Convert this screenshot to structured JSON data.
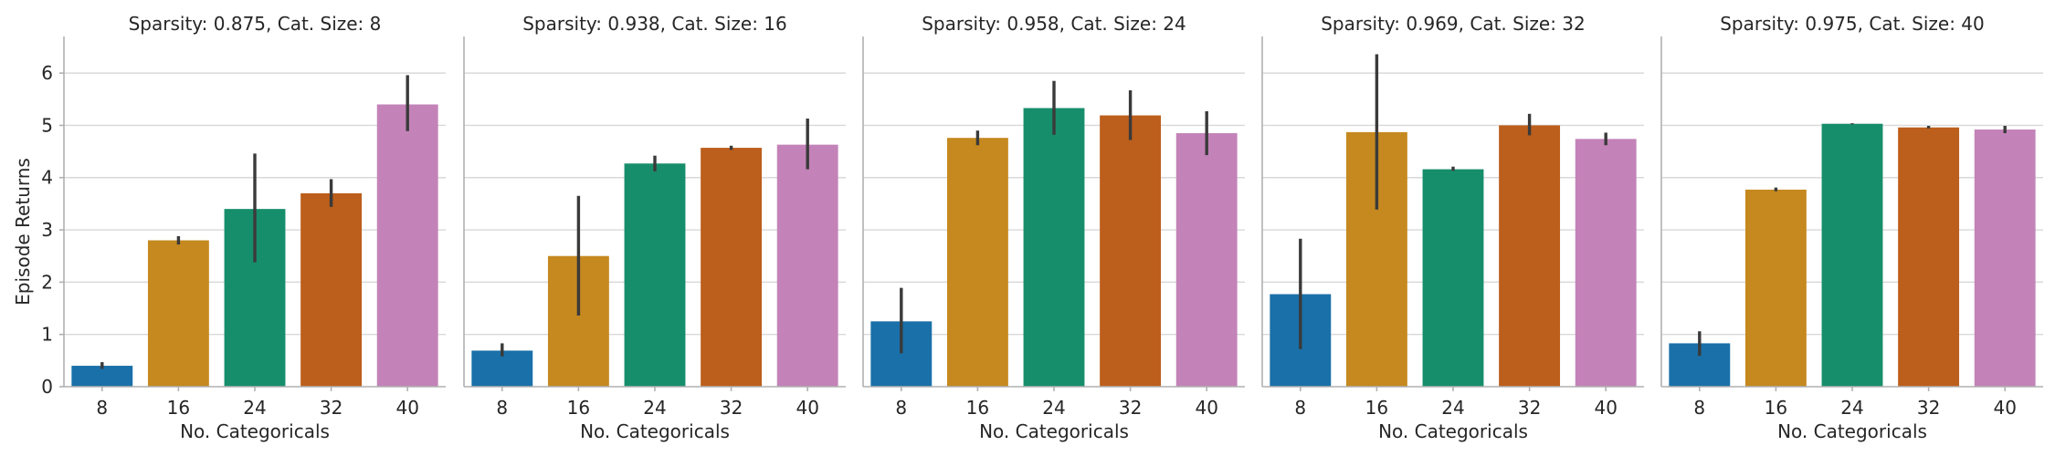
{
  "chart_data": {
    "type": "bar",
    "ylabel": "Episode Returns",
    "xlabel": "No. Categoricals",
    "categories": [
      "8",
      "16",
      "24",
      "32",
      "40"
    ],
    "colors": [
      "#1a70a8",
      "#c5891f",
      "#178e6b",
      "#bc5e1c",
      "#c383b8"
    ],
    "ylim": [
      0,
      6.7
    ],
    "yticks": [
      "0",
      "1",
      "2",
      "3",
      "4",
      "5",
      "6"
    ],
    "grid": true,
    "panels": [
      {
        "title": "Sparsity: 0.875, Cat. Size: 8",
        "values": [
          0.4,
          2.8,
          3.4,
          3.7,
          5.4
        ],
        "err_low": [
          0.34,
          2.72,
          2.38,
          3.44,
          4.89
        ],
        "err_high": [
          0.47,
          2.88,
          4.46,
          3.97,
          5.96
        ]
      },
      {
        "title": "Sparsity: 0.938, Cat. Size: 16",
        "values": [
          0.69,
          2.5,
          4.27,
          4.57,
          4.63
        ],
        "err_low": [
          0.58,
          1.36,
          4.12,
          4.53,
          4.16
        ],
        "err_high": [
          0.83,
          3.65,
          4.42,
          4.61,
          5.13
        ]
      },
      {
        "title": "Sparsity: 0.958, Cat. Size: 24",
        "values": [
          1.25,
          4.76,
          5.33,
          5.19,
          4.85
        ],
        "err_low": [
          0.64,
          4.62,
          4.82,
          4.72,
          4.43
        ],
        "err_high": [
          1.89,
          4.9,
          5.85,
          5.67,
          5.27
        ]
      },
      {
        "title": "Sparsity: 0.969, Cat. Size: 32",
        "values": [
          1.77,
          4.87,
          4.16,
          5.0,
          4.74
        ],
        "err_low": [
          0.72,
          3.39,
          4.13,
          4.81,
          4.62
        ],
        "err_high": [
          2.83,
          6.36,
          4.21,
          5.22,
          4.86
        ]
      },
      {
        "title": "Sparsity: 0.975, Cat. Size: 40",
        "values": [
          0.83,
          3.77,
          5.03,
          4.96,
          4.92
        ],
        "err_low": [
          0.59,
          3.74,
          5.02,
          4.94,
          4.85
        ],
        "err_high": [
          1.06,
          3.81,
          5.04,
          4.99,
          4.99
        ]
      }
    ]
  }
}
